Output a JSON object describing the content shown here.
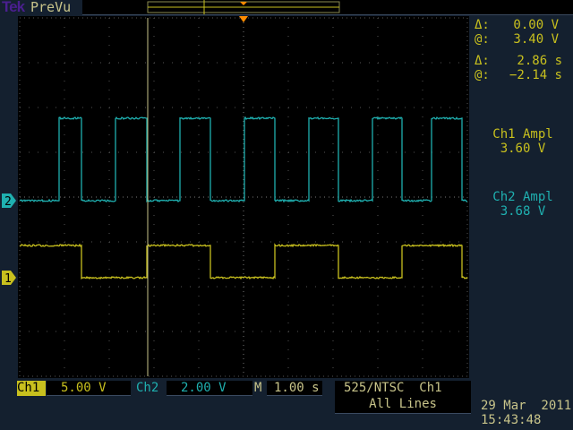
{
  "top_bar": {
    "brand": "Tek",
    "mode": "PreVu"
  },
  "colors": {
    "ch1": "#c8c01e",
    "ch2": "#1fb0b0",
    "trigger": "#ff8c00",
    "background": "#14202f",
    "screen": "#000000"
  },
  "cursor_readouts": [
    {
      "symbol": "Δ:",
      "value": "0.00 V"
    },
    {
      "symbol": "@:",
      "value": "3.40 V"
    },
    {
      "symbol": "Δ:",
      "value": "2.86 s"
    },
    {
      "symbol": "@:",
      "value": "−2.14 s"
    }
  ],
  "measurements": [
    {
      "label": "Ch1 Ampl",
      "value": "3.60 V",
      "channel": "ch1"
    },
    {
      "label": "Ch2 Ampl",
      "value": "3.68 V",
      "channel": "ch2"
    }
  ],
  "channel_markers": {
    "ch1": "1",
    "ch2": "2"
  },
  "status_bar": {
    "ch1_label": "Ch1",
    "ch1_scale": "5.00 V",
    "ch2_label": "Ch2",
    "ch2_scale": "2.00 V",
    "timebase_label": "M",
    "timebase": "1.00 s",
    "trigger_line1": "525/NTSC  Ch1",
    "trigger_line2": "All Lines",
    "date": "29 Mar  2011",
    "time": "15:43:48"
  },
  "waveforms": {
    "ch2": {
      "low_v": 0,
      "high_v": 3.68,
      "volts_per_div": 2.0,
      "start_level": "low",
      "edges_s": [
        -4.12,
        -3.62,
        -2.86,
        -2.16,
        -1.42,
        -0.74,
        0.02,
        0.7,
        1.46,
        2.12,
        2.88,
        3.54,
        4.2,
        4.88
      ]
    },
    "ch1": {
      "low_v": 0,
      "high_v": 3.6,
      "volts_per_div": 5.0,
      "start_level": "high",
      "edges_s": [
        -3.62,
        -2.16,
        -0.74,
        0.7,
        2.12,
        3.54,
        4.88
      ]
    }
  },
  "cursor_time_s": -2.14
}
